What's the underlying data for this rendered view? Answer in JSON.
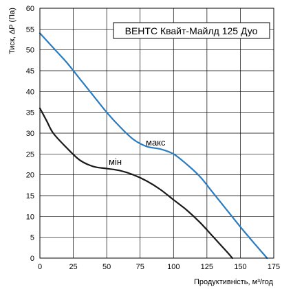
{
  "chart_data": {
    "type": "line",
    "title": "ВЕНТС Квайт-Майлд 125 Дуо",
    "xlabel": "Продуктивність, м³/год",
    "ylabel": "Тиск, ΔP (Па)",
    "xlim": [
      0,
      175
    ],
    "ylim": [
      0,
      60
    ],
    "xticks": [
      0,
      25,
      50,
      75,
      100,
      125,
      150,
      175
    ],
    "yticks": [
      0,
      5,
      10,
      15,
      20,
      25,
      30,
      35,
      40,
      45,
      50,
      55,
      60
    ],
    "grid": true,
    "series": [
      {
        "name": "макс",
        "color": "#2b7bbf",
        "points": [
          [
            0,
            54
          ],
          [
            10,
            50.5
          ],
          [
            20,
            47
          ],
          [
            30,
            43
          ],
          [
            40,
            39
          ],
          [
            50,
            35
          ],
          [
            60,
            31.5
          ],
          [
            70,
            28.5
          ],
          [
            80,
            26.8
          ],
          [
            90,
            26.2
          ],
          [
            100,
            25
          ],
          [
            110,
            22.5
          ],
          [
            120,
            19.5
          ],
          [
            130,
            15.5
          ],
          [
            140,
            11.5
          ],
          [
            150,
            7.5
          ],
          [
            160,
            3.7
          ],
          [
            170,
            0
          ]
        ]
      },
      {
        "name": "мін",
        "color": "#1a1a1a",
        "points": [
          [
            0,
            36
          ],
          [
            5,
            33
          ],
          [
            10,
            30
          ],
          [
            20,
            26.5
          ],
          [
            30,
            23.5
          ],
          [
            40,
            22
          ],
          [
            50,
            21.5
          ],
          [
            60,
            21
          ],
          [
            70,
            20
          ],
          [
            80,
            18.5
          ],
          [
            90,
            16.5
          ],
          [
            100,
            14
          ],
          [
            110,
            11.5
          ],
          [
            120,
            8.5
          ],
          [
            130,
            5
          ],
          [
            140,
            1.5
          ],
          [
            144,
            0
          ]
        ]
      }
    ]
  }
}
